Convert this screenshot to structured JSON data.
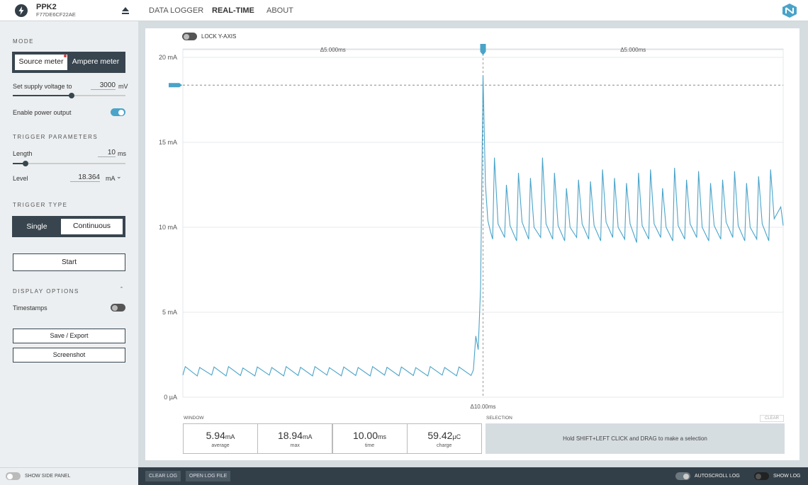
{
  "header": {
    "device": "PPK2",
    "serial": "F77DE6CF22AE",
    "tabs": [
      "DATA LOGGER",
      "REAL-TIME",
      "ABOUT"
    ]
  },
  "sidebar": {
    "mode_title": "MODE",
    "modes": [
      "Source meter",
      "Ampere meter"
    ],
    "supply_label": "Set supply voltage to",
    "supply_value": "3000",
    "supply_unit": "mV",
    "power_label": "Enable power output",
    "trigger_title": "TRIGGER PARAMETERS",
    "length_label": "Length",
    "length_value": "10",
    "length_unit": "ms",
    "level_label": "Level",
    "level_value": 18.364,
    "level_unit": "mA",
    "trigger_type_title": "TRIGGER TYPE",
    "trigger_types": [
      "Single",
      "Continuous"
    ],
    "start": "Start",
    "display_title": "DISPLAY OPTIONS",
    "timestamps": "Timestamps",
    "save": "Save / Export",
    "screenshot": "Screenshot"
  },
  "chart_data": {
    "type": "line",
    "lock_label": "LOCK Y-AXIS",
    "color": "#4aa3c8",
    "grid": true,
    "annotations": {
      "left_span": "Δ5.000ms",
      "right_span": "Δ5.000ms",
      "total_span": "Δ10.00ms"
    },
    "xlim": [
      0,
      10
    ],
    "ylim": [
      0,
      20.5
    ],
    "yticks": [
      {
        "value": 0,
        "label": "0 µA"
      },
      {
        "value": 5,
        "label": "5 mA"
      },
      {
        "value": 10,
        "label": "10 mA"
      },
      {
        "value": 15,
        "label": "15 mA"
      },
      {
        "value": 20,
        "label": "20 mA"
      }
    ],
    "x": [
      0,
      0.04,
      0.24,
      0.28,
      0.48,
      0.52,
      0.72,
      0.76,
      0.96,
      1.0,
      1.2,
      1.24,
      1.44,
      1.48,
      1.68,
      1.72,
      1.92,
      1.96,
      2.16,
      2.2,
      2.4,
      2.44,
      2.64,
      2.68,
      2.88,
      2.92,
      3.12,
      3.16,
      3.36,
      3.4,
      3.6,
      3.64,
      3.84,
      3.88,
      4.08,
      4.12,
      4.32,
      4.36,
      4.56,
      4.6,
      4.8,
      4.84,
      4.88,
      4.92,
      4.96,
      5.0,
      5.04,
      5.08,
      5.12,
      5.16,
      5.19,
      5.25,
      5.36,
      5.39,
      5.45,
      5.56,
      5.59,
      5.65,
      5.76,
      5.79,
      5.85,
      5.96,
      5.99,
      6.05,
      6.16,
      6.19,
      6.25,
      6.36,
      6.39,
      6.45,
      6.56,
      6.59,
      6.65,
      6.76,
      6.79,
      6.85,
      6.96,
      6.99,
      7.05,
      7.16,
      7.19,
      7.25,
      7.36,
      7.39,
      7.45,
      7.56,
      7.59,
      7.65,
      7.76,
      7.79,
      7.85,
      7.96,
      7.99,
      8.05,
      8.16,
      8.19,
      8.25,
      8.36,
      8.39,
      8.45,
      8.56,
      8.59,
      8.65,
      8.76,
      8.79,
      8.85,
      8.96,
      8.99,
      9.05,
      9.16,
      9.19,
      9.25,
      9.36,
      9.39,
      9.45,
      9.56,
      9.59,
      9.65,
      9.76,
      9.79,
      9.85,
      9.96,
      10.0
    ],
    "values": [
      1.3,
      1.8,
      1.25,
      1.75,
      1.3,
      1.78,
      1.25,
      1.8,
      1.28,
      1.72,
      1.25,
      1.78,
      1.3,
      1.75,
      1.25,
      1.8,
      1.28,
      1.76,
      1.25,
      1.8,
      1.3,
      1.74,
      1.26,
      1.78,
      1.28,
      1.75,
      1.25,
      1.8,
      1.3,
      1.76,
      1.26,
      1.78,
      1.28,
      1.74,
      1.25,
      1.8,
      1.3,
      1.75,
      1.26,
      1.78,
      1.28,
      1.6,
      3.6,
      2.8,
      6.5,
      18.94,
      12.5,
      10.4,
      9.8,
      9.3,
      14.1,
      10.2,
      9.4,
      12.5,
      10.1,
      9.2,
      13.2,
      10.3,
      9.3,
      12.9,
      10.0,
      9.4,
      14.1,
      10.2,
      9.3,
      13.2,
      10.1,
      9.2,
      12.3,
      10.0,
      9.4,
      12.8,
      10.2,
      9.3,
      12.7,
      10.1,
      9.2,
      13.4,
      10.3,
      9.4,
      12.9,
      10.0,
      9.3,
      12.6,
      10.2,
      9.1,
      13.2,
      10.1,
      9.3,
      13.4,
      10.2,
      9.4,
      12.3,
      10.0,
      9.2,
      13.5,
      10.1,
      9.3,
      12.8,
      10.2,
      9.4,
      13.3,
      10.0,
      9.2,
      12.6,
      10.1,
      9.3,
      12.8,
      10.3,
      9.4,
      13.3,
      10.1,
      9.2,
      12.6,
      10.0,
      9.3,
      13.0,
      10.2,
      9.2,
      13.4,
      10.5,
      11.2,
      10.1
    ]
  },
  "window": {
    "title": "WINDOW",
    "stats": [
      {
        "value": "5.94",
        "unit": "mA",
        "label": "average"
      },
      {
        "value": "18.94",
        "unit": "mA",
        "label": "max"
      },
      {
        "value": "10.00",
        "unit": "ms",
        "label": "time"
      },
      {
        "value": "59.42",
        "unit": "µC",
        "label": "charge"
      }
    ]
  },
  "selection": {
    "title": "SELECTION",
    "clear": "CLEAR",
    "hint": "Hold SHIFT+LEFT CLICK and DRAG to make a selection"
  },
  "footer": {
    "side_panel": "SHOW SIDE PANEL",
    "clear_log": "CLEAR LOG",
    "open_log": "OPEN LOG FILE",
    "autoscroll": "AUTOSCROLL LOG",
    "show_log": "SHOW LOG"
  }
}
